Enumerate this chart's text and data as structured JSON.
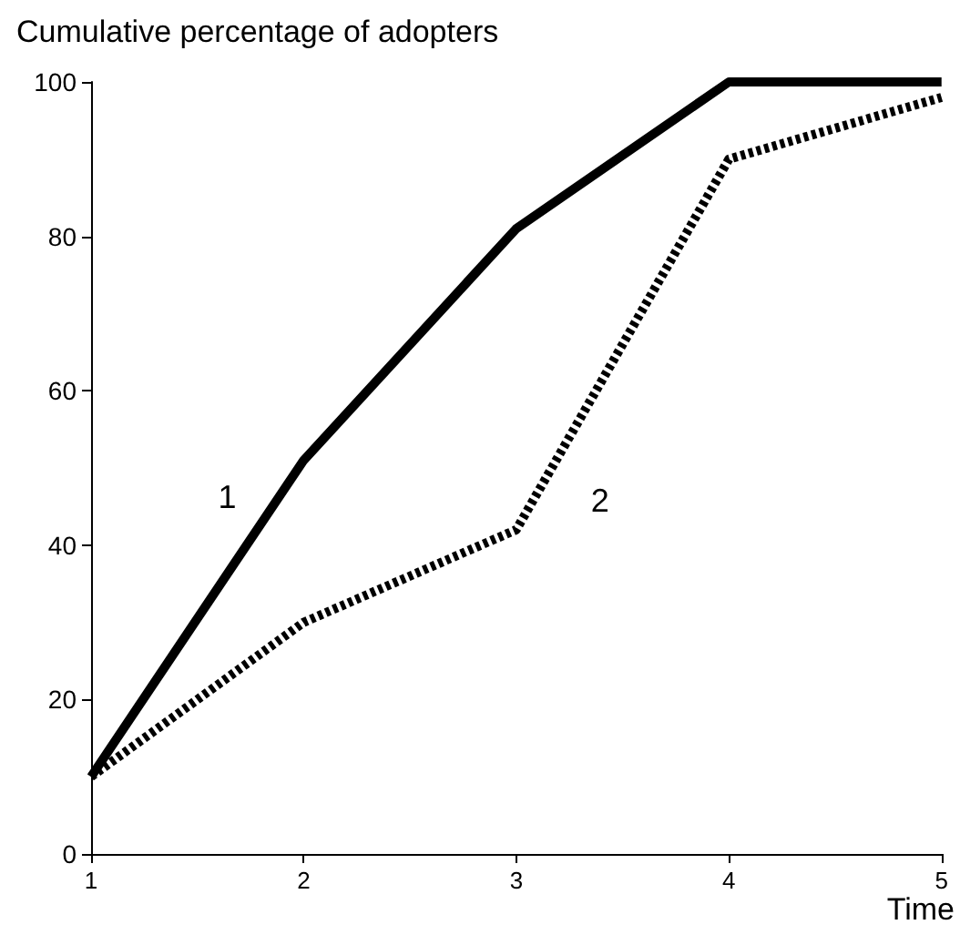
{
  "chart_data": {
    "type": "line",
    "title": "Cumulative percentage of adopters",
    "xlabel": "Time",
    "x": [
      1,
      2,
      3,
      4,
      5
    ],
    "xlim": [
      1,
      5
    ],
    "xticks": [
      1,
      2,
      3,
      4,
      5
    ],
    "ylim": [
      0,
      100
    ],
    "yticks": [
      0,
      20,
      40,
      60,
      80,
      100
    ],
    "grid": false,
    "legend": false,
    "marker": "none",
    "series": [
      {
        "name": "1",
        "color": "#000000",
        "line_style": "solid",
        "values": [
          10,
          51,
          81,
          100,
          100
        ]
      },
      {
        "name": "2",
        "color": "#000000",
        "line_style": "dotted",
        "values": [
          10,
          30,
          42,
          90,
          98
        ]
      }
    ]
  }
}
